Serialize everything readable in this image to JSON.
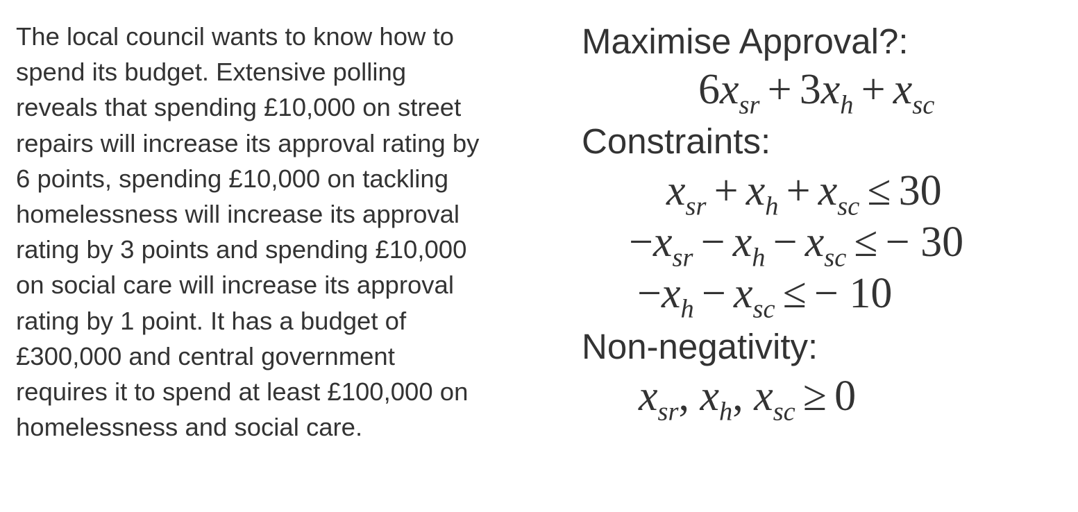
{
  "problem": {
    "lines": [
      "The local council wants to know how to",
      "spend its budget.  Extensive polling",
      "reveals that spending £10,000 on street",
      "repairs will increase its approval rating by",
      "6 points, spending £10,000 on tackling",
      "homelessness will increase its approval",
      "rating by 3 points and spending £10,000",
      "on social care will increase its approval",
      "rating by 1 point.  It has a budget of",
      "£300,000 and central government",
      "requires it to spend at least £100,000 on",
      "homelessness and social care."
    ]
  },
  "model": {
    "objective_heading": "Maximise Approval?:",
    "constraints_heading": "Constraints:",
    "nonneg_heading": "Non-negativity:",
    "var": "x",
    "subs": {
      "sr": "sr",
      "h": "h",
      "sc": "sc"
    },
    "coef_sr": "6",
    "coef_h": "3",
    "plus": "+",
    "minus": "−",
    "leq": "≤",
    "geq": "≥",
    "comma": ",",
    "c1_rhs": "30",
    "c2_rhs": "− 30",
    "c3_rhs": "− 10",
    "nonneg_rhs": "0"
  }
}
